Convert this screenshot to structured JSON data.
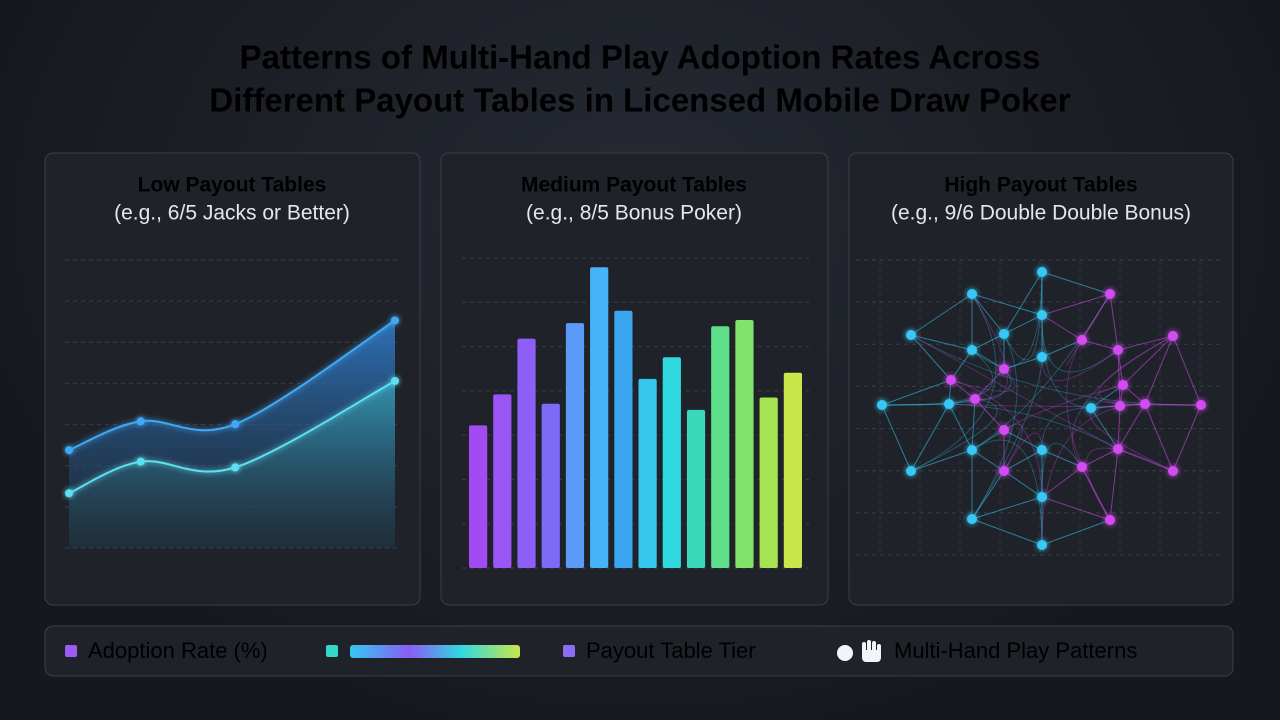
{
  "title": [
    "Patterns of Multi-Hand Play Adoption Rates Across",
    "Different Payout Tables in Licensed Mobile Draw Poker"
  ],
  "chart_data": [
    {
      "type": "area",
      "title": "Low Payout Tables",
      "subtitle": "(e.g., 6/5 Jacks or Better)",
      "x": [
        0,
        22,
        51,
        100
      ],
      "xlim": [
        0,
        100
      ],
      "ylim": [
        0,
        100
      ],
      "series": [
        {
          "color": "#3fa9f5",
          "values": [
            34,
            44,
            43,
            79
          ]
        },
        {
          "color": "#5ee0f0",
          "values": [
            19,
            30,
            28,
            58
          ]
        }
      ]
    },
    {
      "type": "bar",
      "title": "Medium Payout Tables",
      "subtitle": "(e.g., 8/5 Bonus Poker)",
      "categories": [
        null,
        null,
        null,
        null,
        null,
        null,
        null,
        null,
        null,
        null,
        null,
        null,
        null,
        null
      ],
      "values": [
        46,
        56,
        74,
        53,
        79,
        97,
        83,
        61,
        68,
        51,
        78,
        80,
        55,
        63
      ],
      "ylim": [
        0,
        100
      ],
      "colors": [
        "#a24bf2",
        "#9a55f5",
        "#8e5ff7",
        "#7f6af7",
        "#5b9af7",
        "#46b4f6",
        "#3aa6f0",
        "#36c6ee",
        "#30d8e0",
        "#3ad8b8",
        "#5ee08a",
        "#82e36a",
        "#a6e352",
        "#c9e64a"
      ]
    },
    {
      "type": "scatter",
      "title": "High Payout Tables",
      "subtitle": "(e.g., 9/6 Double Double Bonus)",
      "xlim": [
        0,
        360
      ],
      "ylim": [
        0,
        295
      ],
      "series": [
        {
          "color": "#38c8f5",
          "x": [
            182,
            112,
            182,
            51,
            144,
            112,
            182,
            22,
            89,
            231,
            182,
            112,
            51,
            182,
            112,
            182
          ],
          "values": [
            283,
            261,
            240,
            220,
            221,
            205,
            198,
            150,
            151,
            147,
            105,
            105,
            84,
            58,
            36,
            10
          ]
        },
        {
          "color": "#d34cf2",
          "x": [
            250,
            313,
            222,
            258,
            91,
            144,
            263,
            115,
            260,
            285,
            341,
            144,
            258,
            144,
            222,
            313,
            250
          ],
          "values": [
            261,
            219,
            215,
            205,
            175,
            186,
            170,
            156,
            149,
            151,
            150,
            125,
            106,
            84,
            88,
            84,
            35
          ]
        }
      ]
    }
  ],
  "legend": [
    "Adoption Rate (%)",
    "Payout Table Tier",
    "Multi-Hand Play Patterns"
  ]
}
